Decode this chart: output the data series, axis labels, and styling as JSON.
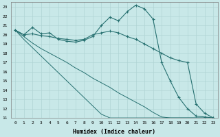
{
  "xlabel": "Humidex (Indice chaleur)",
  "background_color": "#c8e8e8",
  "grid_color": "#b0d4d4",
  "line_color": "#267070",
  "xlim": [
    -0.5,
    23.5
  ],
  "ylim": [
    11,
    23.5
  ],
  "xticks": [
    0,
    1,
    2,
    3,
    4,
    5,
    6,
    7,
    8,
    9,
    10,
    11,
    12,
    13,
    14,
    15,
    16,
    17,
    18,
    19,
    20,
    21,
    22,
    23
  ],
  "yticks": [
    11,
    12,
    13,
    14,
    15,
    16,
    17,
    18,
    19,
    20,
    21,
    22,
    23
  ],
  "series": [
    {
      "x": [
        0,
        1,
        2,
        3,
        4,
        5,
        6,
        7,
        8,
        9,
        10,
        11,
        12,
        13,
        14,
        15,
        16,
        17,
        18,
        19,
        20,
        21,
        22,
        23
      ],
      "y": [
        20.5,
        20.0,
        20.8,
        20.1,
        20.2,
        19.5,
        19.3,
        19.2,
        19.4,
        19.8,
        21.0,
        21.9,
        21.5,
        22.5,
        23.2,
        22.8,
        21.7,
        17.0,
        15.0,
        13.2,
        12.0,
        11.2,
        11.1,
        11.0
      ],
      "marker": "+"
    },
    {
      "x": [
        0,
        1,
        2,
        3,
        4,
        5,
        6,
        7,
        8,
        9,
        10,
        11,
        12,
        13,
        14,
        15,
        16,
        17,
        18,
        19,
        20,
        21,
        22,
        23
      ],
      "y": [
        20.5,
        20.0,
        20.1,
        19.9,
        19.8,
        19.6,
        19.5,
        19.4,
        19.5,
        20.0,
        20.2,
        20.4,
        20.2,
        19.8,
        19.5,
        19.0,
        18.5,
        18.0,
        17.5,
        17.2,
        17.0,
        12.5,
        11.5,
        11.0
      ],
      "marker": "+"
    },
    {
      "x": [
        0,
        23
      ],
      "y": [
        20.5,
        11.0
      ],
      "marker": null
    },
    {
      "x": [
        0,
        23
      ],
      "y": [
        20.5,
        11.0
      ],
      "marker": null
    }
  ],
  "series2": [
    {
      "x": [
        0,
        1,
        2,
        3,
        4,
        5,
        6,
        7,
        8,
        9,
        10,
        11,
        12,
        13,
        14,
        15,
        16,
        17,
        18,
        19,
        20,
        21,
        22,
        23
      ],
      "y": [
        20.5,
        20.0,
        20.8,
        20.1,
        20.2,
        19.5,
        19.3,
        19.2,
        19.4,
        19.8,
        21.0,
        21.9,
        21.5,
        22.5,
        23.2,
        22.8,
        21.7,
        17.0,
        15.0,
        13.2,
        12.0,
        11.2,
        11.1,
        11.0
      ]
    },
    {
      "x": [
        0,
        1,
        2,
        3,
        4,
        5,
        6,
        7,
        8,
        9,
        10,
        11,
        12,
        13,
        14,
        15,
        16,
        17,
        18,
        19,
        20,
        21,
        22,
        23
      ],
      "y": [
        20.5,
        20.0,
        20.1,
        19.9,
        19.8,
        19.6,
        19.5,
        19.4,
        19.5,
        20.0,
        20.2,
        20.4,
        20.2,
        19.8,
        19.5,
        19.0,
        18.5,
        18.0,
        17.5,
        17.2,
        17.0,
        12.5,
        11.5,
        11.0
      ]
    },
    {
      "x": [
        0,
        1,
        2,
        3,
        4,
        5,
        6,
        7,
        8,
        9,
        10,
        11,
        12,
        13,
        14,
        15,
        16,
        17,
        18,
        19,
        20,
        21,
        22,
        23
      ],
      "y": [
        20.5,
        19.8,
        19.1,
        18.5,
        18.0,
        17.5,
        17.0,
        16.4,
        15.9,
        15.3,
        14.8,
        14.3,
        13.7,
        13.2,
        12.7,
        12.2,
        11.6,
        11.1,
        11.0,
        11.0,
        11.0,
        11.0,
        11.0,
        11.0
      ]
    },
    {
      "x": [
        0,
        1,
        2,
        3,
        4,
        5,
        6,
        7,
        8,
        9,
        10,
        11,
        12,
        13,
        14,
        15,
        16,
        17,
        18,
        19,
        20,
        21,
        22,
        23
      ],
      "y": [
        20.5,
        19.5,
        18.6,
        17.7,
        16.8,
        15.9,
        15.0,
        14.1,
        13.2,
        12.3,
        11.4,
        11.0,
        11.0,
        11.0,
        11.0,
        11.0,
        11.0,
        11.0,
        11.0,
        11.0,
        11.0,
        11.0,
        11.0,
        11.0
      ]
    }
  ]
}
